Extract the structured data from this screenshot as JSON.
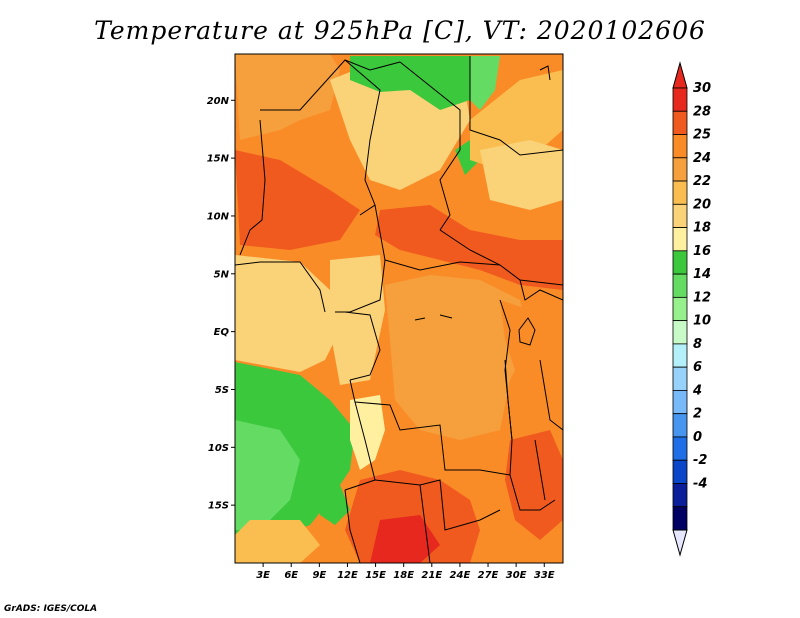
{
  "title": "Temperature at 925hPa [C], VT: 2020102606",
  "credit": "GrADS: IGES/COLA",
  "map": {
    "lon_range": [
      0,
      35
    ],
    "lat_range": [
      -20,
      24
    ],
    "lat_ticks": [
      {
        "lat": 20,
        "label": "20N"
      },
      {
        "lat": 15,
        "label": "15N"
      },
      {
        "lat": 10,
        "label": "10N"
      },
      {
        "lat": 5,
        "label": "5N"
      },
      {
        "lat": 0,
        "label": "EQ"
      },
      {
        "lat": -5,
        "label": "5S"
      },
      {
        "lat": -10,
        "label": "10S"
      },
      {
        "lat": -15,
        "label": "15S"
      }
    ],
    "lon_ticks": [
      {
        "lon": 3,
        "label": "3E"
      },
      {
        "lon": 6,
        "label": "6E"
      },
      {
        "lon": 9,
        "label": "9E"
      },
      {
        "lon": 12,
        "label": "12E"
      },
      {
        "lon": 15,
        "label": "15E"
      },
      {
        "lon": 18,
        "label": "18E"
      },
      {
        "lon": 21,
        "label": "21E"
      },
      {
        "lon": 24,
        "label": "24E"
      },
      {
        "lon": 27,
        "label": "27E"
      },
      {
        "lon": 30,
        "label": "30E"
      },
      {
        "lon": 33,
        "label": "33E"
      }
    ]
  },
  "colorbar": {
    "labels": [
      "30",
      "28",
      "25",
      "24",
      "22",
      "20",
      "18",
      "16",
      "14",
      "12",
      "10",
      "8",
      "6",
      "4",
      "2",
      "0",
      "-2",
      "-4"
    ],
    "colors": [
      "#e6281e",
      "#f05a1e",
      "#fa8c28",
      "#f5a03c",
      "#fabe50",
      "#fad278",
      "#fff0a0",
      "#3cc83c",
      "#64dc64",
      "#96f08c",
      "#c8fac8",
      "#b4f0fa",
      "#96d2fa",
      "#78b9fa",
      "#4696f0",
      "#1e6ee6",
      "#0a46c8",
      "#0a1e9a",
      "#000064"
    ],
    "top_color": "#e6281e",
    "bottom_color": "#e6e6ff"
  }
}
